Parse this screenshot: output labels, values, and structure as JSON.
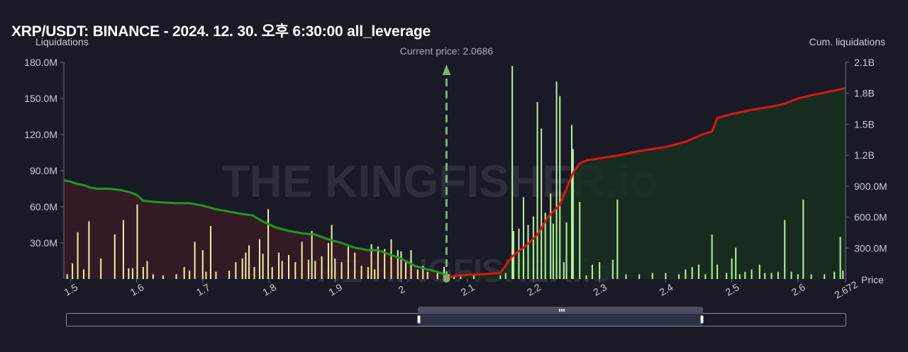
{
  "title": "XRP/USDT: BINANCE - 2024. 12. 30. 오후 6:30:00 all_leverage",
  "current_price_label": "Current price: 2.0686",
  "watermark": "THE KINGFISHER.io",
  "colors": {
    "background": "#181a26",
    "long_line": "#1f9a1f",
    "long_fill": "#3a1b24",
    "short_line": "#e01515",
    "short_fill": "#17301f",
    "bars": "#f2f0a6",
    "bars_right": "#b8f2a0",
    "current_price": "#7fae70"
  },
  "chart_data": {
    "type": "bar",
    "x_label": "Price",
    "y_left_label": "Liquidations",
    "y_right_label": "Cum. liquidations",
    "x_range": [
      1.49,
      2.672
    ],
    "y_left_range": [
      0,
      180000000
    ],
    "y_right_range": [
      0,
      2100000000
    ],
    "x_ticks": [
      "1.5",
      "1.6",
      "1.7",
      "1.8",
      "1.9",
      "2",
      "2.1",
      "2.2",
      "2.3",
      "2.4",
      "2.5",
      "2.6",
      "2.672"
    ],
    "y_left_ticks": [
      "30.0M",
      "60.0M",
      "90.0M",
      "120.0M",
      "150.0M",
      "180.0M"
    ],
    "y_right_ticks": [
      "300.0M",
      "600.0M",
      "900.0M",
      "1.2B",
      "1.5B",
      "1.8B",
      "2.1B"
    ],
    "current_price": 2.0686,
    "bars_below": [
      [
        1.495,
        4
      ],
      [
        1.503,
        13
      ],
      [
        1.511,
        39
      ],
      [
        1.52,
        8
      ],
      [
        1.528,
        48
      ],
      [
        1.546,
        17
      ],
      [
        1.567,
        37
      ],
      [
        1.58,
        49
      ],
      [
        1.588,
        9
      ],
      [
        1.594,
        9
      ],
      [
        1.601,
        62
      ],
      [
        1.61,
        10
      ],
      [
        1.616,
        15
      ],
      [
        1.625,
        4
      ],
      [
        1.64,
        3
      ],
      [
        1.66,
        4
      ],
      [
        1.672,
        10
      ],
      [
        1.68,
        7
      ],
      [
        1.688,
        31
      ],
      [
        1.7,
        24
      ],
      [
        1.705,
        6
      ],
      [
        1.712,
        44
      ],
      [
        1.72,
        6
      ],
      [
        1.74,
        7
      ],
      [
        1.75,
        14
      ],
      [
        1.76,
        17
      ],
      [
        1.765,
        22
      ],
      [
        1.77,
        28
      ],
      [
        1.778,
        10
      ],
      [
        1.786,
        33
      ],
      [
        1.791,
        21
      ],
      [
        1.799,
        58
      ],
      [
        1.805,
        10
      ],
      [
        1.815,
        22
      ],
      [
        1.82,
        15
      ],
      [
        1.83,
        20
      ],
      [
        1.84,
        14
      ],
      [
        1.85,
        31
      ],
      [
        1.86,
        16
      ],
      [
        1.865,
        40
      ],
      [
        1.87,
        15
      ],
      [
        1.88,
        19
      ],
      [
        1.89,
        30
      ],
      [
        1.895,
        45
      ],
      [
        1.9,
        17
      ],
      [
        1.91,
        14
      ],
      [
        1.92,
        27
      ],
      [
        1.93,
        22
      ],
      [
        1.94,
        11
      ],
      [
        1.95,
        10
      ],
      [
        1.955,
        29
      ],
      [
        1.96,
        8
      ],
      [
        1.965,
        27
      ],
      [
        1.975,
        25
      ],
      [
        1.985,
        33
      ],
      [
        1.995,
        24
      ],
      [
        2.0,
        23
      ],
      [
        2.007,
        14
      ],
      [
        2.015,
        24
      ],
      [
        2.025,
        8
      ],
      [
        2.033,
        11
      ],
      [
        2.04,
        6
      ],
      [
        2.055,
        5
      ],
      [
        2.065,
        10
      ]
    ],
    "bars_above": [
      [
        2.072,
        4
      ],
      [
        2.08,
        2
      ],
      [
        2.09,
        4
      ],
      [
        2.11,
        3
      ],
      [
        2.15,
        3
      ],
      [
        2.158,
        5
      ],
      [
        2.168,
        177
      ],
      [
        2.17,
        40
      ],
      [
        2.178,
        42
      ],
      [
        2.185,
        68
      ],
      [
        2.192,
        45
      ],
      [
        2.2,
        52
      ],
      [
        2.206,
        147
      ],
      [
        2.212,
        125
      ],
      [
        2.218,
        55
      ],
      [
        2.226,
        71
      ],
      [
        2.23,
        46
      ],
      [
        2.235,
        164
      ],
      [
        2.24,
        152
      ],
      [
        2.246,
        14
      ],
      [
        2.25,
        47
      ],
      [
        2.258,
        128
      ],
      [
        2.26,
        108
      ],
      [
        2.27,
        64
      ],
      [
        2.28,
        3
      ],
      [
        2.289,
        12
      ],
      [
        2.3,
        14
      ],
      [
        2.32,
        16
      ],
      [
        2.327,
        66
      ],
      [
        2.34,
        4
      ],
      [
        2.36,
        4
      ],
      [
        2.38,
        5
      ],
      [
        2.4,
        5
      ],
      [
        2.42,
        4
      ],
      [
        2.43,
        8
      ],
      [
        2.44,
        10
      ],
      [
        2.45,
        12
      ],
      [
        2.46,
        4
      ],
      [
        2.47,
        37
      ],
      [
        2.478,
        12
      ],
      [
        2.492,
        5
      ],
      [
        2.5,
        17
      ],
      [
        2.506,
        26
      ],
      [
        2.512,
        4
      ],
      [
        2.52,
        6
      ],
      [
        2.53,
        8
      ],
      [
        2.542,
        12
      ],
      [
        2.55,
        5
      ],
      [
        2.56,
        5
      ],
      [
        2.57,
        6
      ],
      [
        2.58,
        49
      ],
      [
        2.59,
        6
      ],
      [
        2.6,
        4
      ],
      [
        2.608,
        66
      ],
      [
        2.62,
        4
      ],
      [
        2.64,
        4
      ],
      [
        2.655,
        6
      ],
      [
        2.664,
        35
      ],
      [
        2.668,
        7
      ]
    ],
    "cum_long_left": [
      [
        1.49,
        82
      ],
      [
        1.5,
        81
      ],
      [
        1.51,
        79
      ],
      [
        1.52,
        78
      ],
      [
        1.53,
        76
      ],
      [
        1.54,
        75
      ],
      [
        1.56,
        75
      ],
      [
        1.575,
        74
      ],
      [
        1.59,
        72
      ],
      [
        1.6,
        70
      ],
      [
        1.61,
        65
      ],
      [
        1.63,
        64
      ],
      [
        1.66,
        63
      ],
      [
        1.68,
        63
      ],
      [
        1.7,
        61
      ],
      [
        1.72,
        58
      ],
      [
        1.74,
        56
      ],
      [
        1.76,
        54
      ],
      [
        1.775,
        53
      ],
      [
        1.79,
        48
      ],
      [
        1.81,
        43
      ],
      [
        1.83,
        40
      ],
      [
        1.85,
        38
      ],
      [
        1.87,
        37
      ],
      [
        1.89,
        33
      ],
      [
        1.91,
        30
      ],
      [
        1.93,
        26
      ],
      [
        1.95,
        24
      ],
      [
        1.965,
        24
      ],
      [
        1.98,
        21
      ],
      [
        2.0,
        17
      ],
      [
        2.02,
        11
      ],
      [
        2.04,
        8
      ],
      [
        2.055,
        6
      ],
      [
        2.0686,
        3
      ]
    ],
    "cum_short_right": [
      [
        2.0686,
        0.01
      ],
      [
        2.08,
        0.03
      ],
      [
        2.1,
        0.04
      ],
      [
        2.13,
        0.05
      ],
      [
        2.15,
        0.06
      ],
      [
        2.168,
        0.22
      ],
      [
        2.19,
        0.33
      ],
      [
        2.206,
        0.43
      ],
      [
        2.222,
        0.6
      ],
      [
        2.24,
        0.72
      ],
      [
        2.26,
        1.03
      ],
      [
        2.27,
        1.12
      ],
      [
        2.28,
        1.15
      ],
      [
        2.3,
        1.17
      ],
      [
        2.33,
        1.2
      ],
      [
        2.36,
        1.24
      ],
      [
        2.4,
        1.28
      ],
      [
        2.43,
        1.33
      ],
      [
        2.455,
        1.4
      ],
      [
        2.47,
        1.43
      ],
      [
        2.478,
        1.56
      ],
      [
        2.5,
        1.6
      ],
      [
        2.53,
        1.64
      ],
      [
        2.56,
        1.67
      ],
      [
        2.58,
        1.7
      ],
      [
        2.6,
        1.75
      ],
      [
        2.62,
        1.78
      ],
      [
        2.65,
        1.82
      ],
      [
        2.672,
        1.85
      ]
    ]
  }
}
